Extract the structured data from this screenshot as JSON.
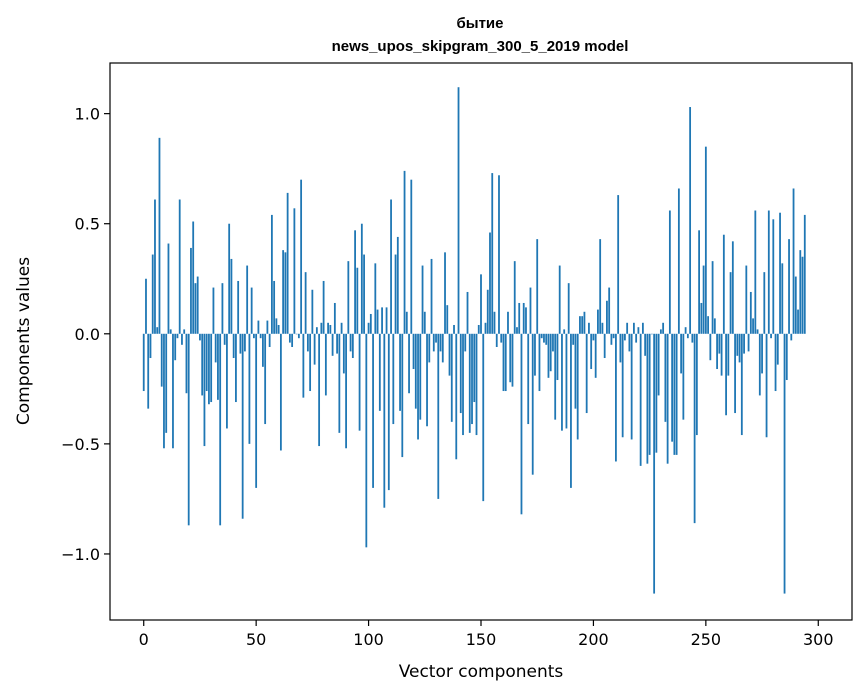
{
  "chart_data": {
    "type": "bar",
    "title": "бытие",
    "subtitle": "news_upos_skipgram_300_5_2019 model",
    "xlabel": "Vector components",
    "ylabel": "Components values",
    "xlim": [
      -15,
      315
    ],
    "ylim": [
      -1.3,
      1.23
    ],
    "xticks": [
      0,
      50,
      100,
      150,
      200,
      250,
      300
    ],
    "xtick_labels": [
      "0",
      "50",
      "100",
      "150",
      "200",
      "250",
      "300"
    ],
    "yticks": [
      -1.0,
      -0.5,
      0.0,
      0.5,
      1.0
    ],
    "ytick_labels": [
      "−1.0",
      "−0.5",
      "0.0",
      "0.5",
      "1.0"
    ],
    "bar_color": "#1f77b4",
    "grid": false,
    "legend": "none",
    "values": [
      -0.26,
      0.25,
      -0.34,
      -0.11,
      0.36,
      0.61,
      0.03,
      0.89,
      -0.24,
      -0.52,
      -0.45,
      0.41,
      0.02,
      -0.52,
      -0.12,
      -0.02,
      0.61,
      -0.05,
      0.02,
      -0.27,
      -0.87,
      0.39,
      0.51,
      0.23,
      0.26,
      -0.03,
      -0.28,
      -0.51,
      -0.26,
      -0.32,
      -0.31,
      0.21,
      -0.13,
      -0.3,
      -0.87,
      0.23,
      -0.05,
      -0.43,
      0.5,
      0.34,
      -0.11,
      -0.31,
      0.24,
      -0.09,
      -0.84,
      -0.08,
      0.31,
      -0.5,
      0.21,
      -0.02,
      -0.7,
      0.06,
      -0.02,
      -0.15,
      -0.41,
      0.06,
      -0.06,
      0.54,
      0.24,
      0.07,
      0.04,
      -0.53,
      0.38,
      0.37,
      0.64,
      -0.04,
      -0.06,
      0.57,
      0.0,
      -0.02,
      0.7,
      -0.29,
      0.28,
      -0.08,
      -0.26,
      0.2,
      -0.14,
      0.03,
      -0.51,
      0.05,
      0.24,
      -0.28,
      0.05,
      0.04,
      -0.1,
      0.14,
      -0.09,
      -0.45,
      0.05,
      -0.18,
      -0.52,
      0.33,
      -0.08,
      -0.11,
      0.47,
      0.3,
      -0.44,
      0.5,
      0.36,
      -0.97,
      0.05,
      0.09,
      -0.7,
      0.32,
      0.11,
      -0.35,
      0.12,
      -0.79,
      0.12,
      -0.71,
      0.61,
      -0.41,
      0.36,
      0.44,
      -0.35,
      -0.56,
      0.74,
      0.1,
      -0.27,
      0.7,
      -0.16,
      -0.34,
      -0.48,
      -0.39,
      0.31,
      0.1,
      -0.42,
      -0.13,
      0.34,
      -0.08,
      -0.04,
      -0.75,
      -0.08,
      -0.13,
      0.37,
      0.13,
      -0.19,
      -0.4,
      0.04,
      -0.57,
      1.12,
      -0.36,
      -0.46,
      -0.08,
      0.19,
      -0.45,
      -0.41,
      -0.31,
      -0.46,
      0.04,
      0.27,
      -0.76,
      0.05,
      0.2,
      0.46,
      0.73,
      0.1,
      -0.06,
      0.72,
      -0.04,
      -0.26,
      -0.26,
      0.1,
      -0.22,
      -0.24,
      0.33,
      0.03,
      0.14,
      -0.82,
      0.14,
      0.12,
      -0.41,
      0.21,
      -0.64,
      -0.19,
      0.43,
      -0.26,
      -0.02,
      -0.04,
      -0.05,
      -0.2,
      -0.17,
      -0.08,
      -0.39,
      -0.21,
      0.31,
      -0.44,
      0.02,
      -0.43,
      0.23,
      -0.7,
      -0.05,
      -0.34,
      -0.48,
      0.08,
      0.08,
      0.1,
      -0.36,
      0.05,
      -0.16,
      -0.03,
      -0.2,
      0.11,
      0.43,
      0.05,
      -0.11,
      0.15,
      0.21,
      -0.05,
      -0.02,
      -0.58,
      0.63,
      -0.13,
      -0.47,
      -0.03,
      0.05,
      -0.08,
      -0.48,
      0.05,
      -0.04,
      0.03,
      -0.6,
      0.05,
      -0.1,
      -0.59,
      -0.55,
      0.0,
      -1.18,
      -0.54,
      -0.28,
      0.02,
      0.05,
      -0.4,
      -0.59,
      0.56,
      -0.49,
      -0.55,
      -0.55,
      0.66,
      -0.18,
      -0.39,
      0.03,
      -0.02,
      1.03,
      -0.04,
      -0.86,
      -0.46,
      0.47,
      0.14,
      0.31,
      0.85,
      0.08,
      -0.12,
      0.33,
      0.07,
      -0.16,
      -0.09,
      -0.19,
      0.45,
      -0.37,
      -0.19,
      0.28,
      0.42,
      -0.36,
      -0.1,
      -0.13,
      -0.46,
      -0.09,
      0.31,
      -0.08,
      0.19,
      0.07,
      0.56,
      0.02,
      -0.28,
      -0.18,
      0.28,
      -0.47,
      0.56,
      -0.02,
      0.52,
      -0.26,
      -0.14,
      0.55,
      0.32,
      -1.18,
      -0.21,
      0.43,
      -0.03,
      0.66,
      0.26,
      0.11,
      0.38,
      0.35,
      0.54
    ]
  }
}
